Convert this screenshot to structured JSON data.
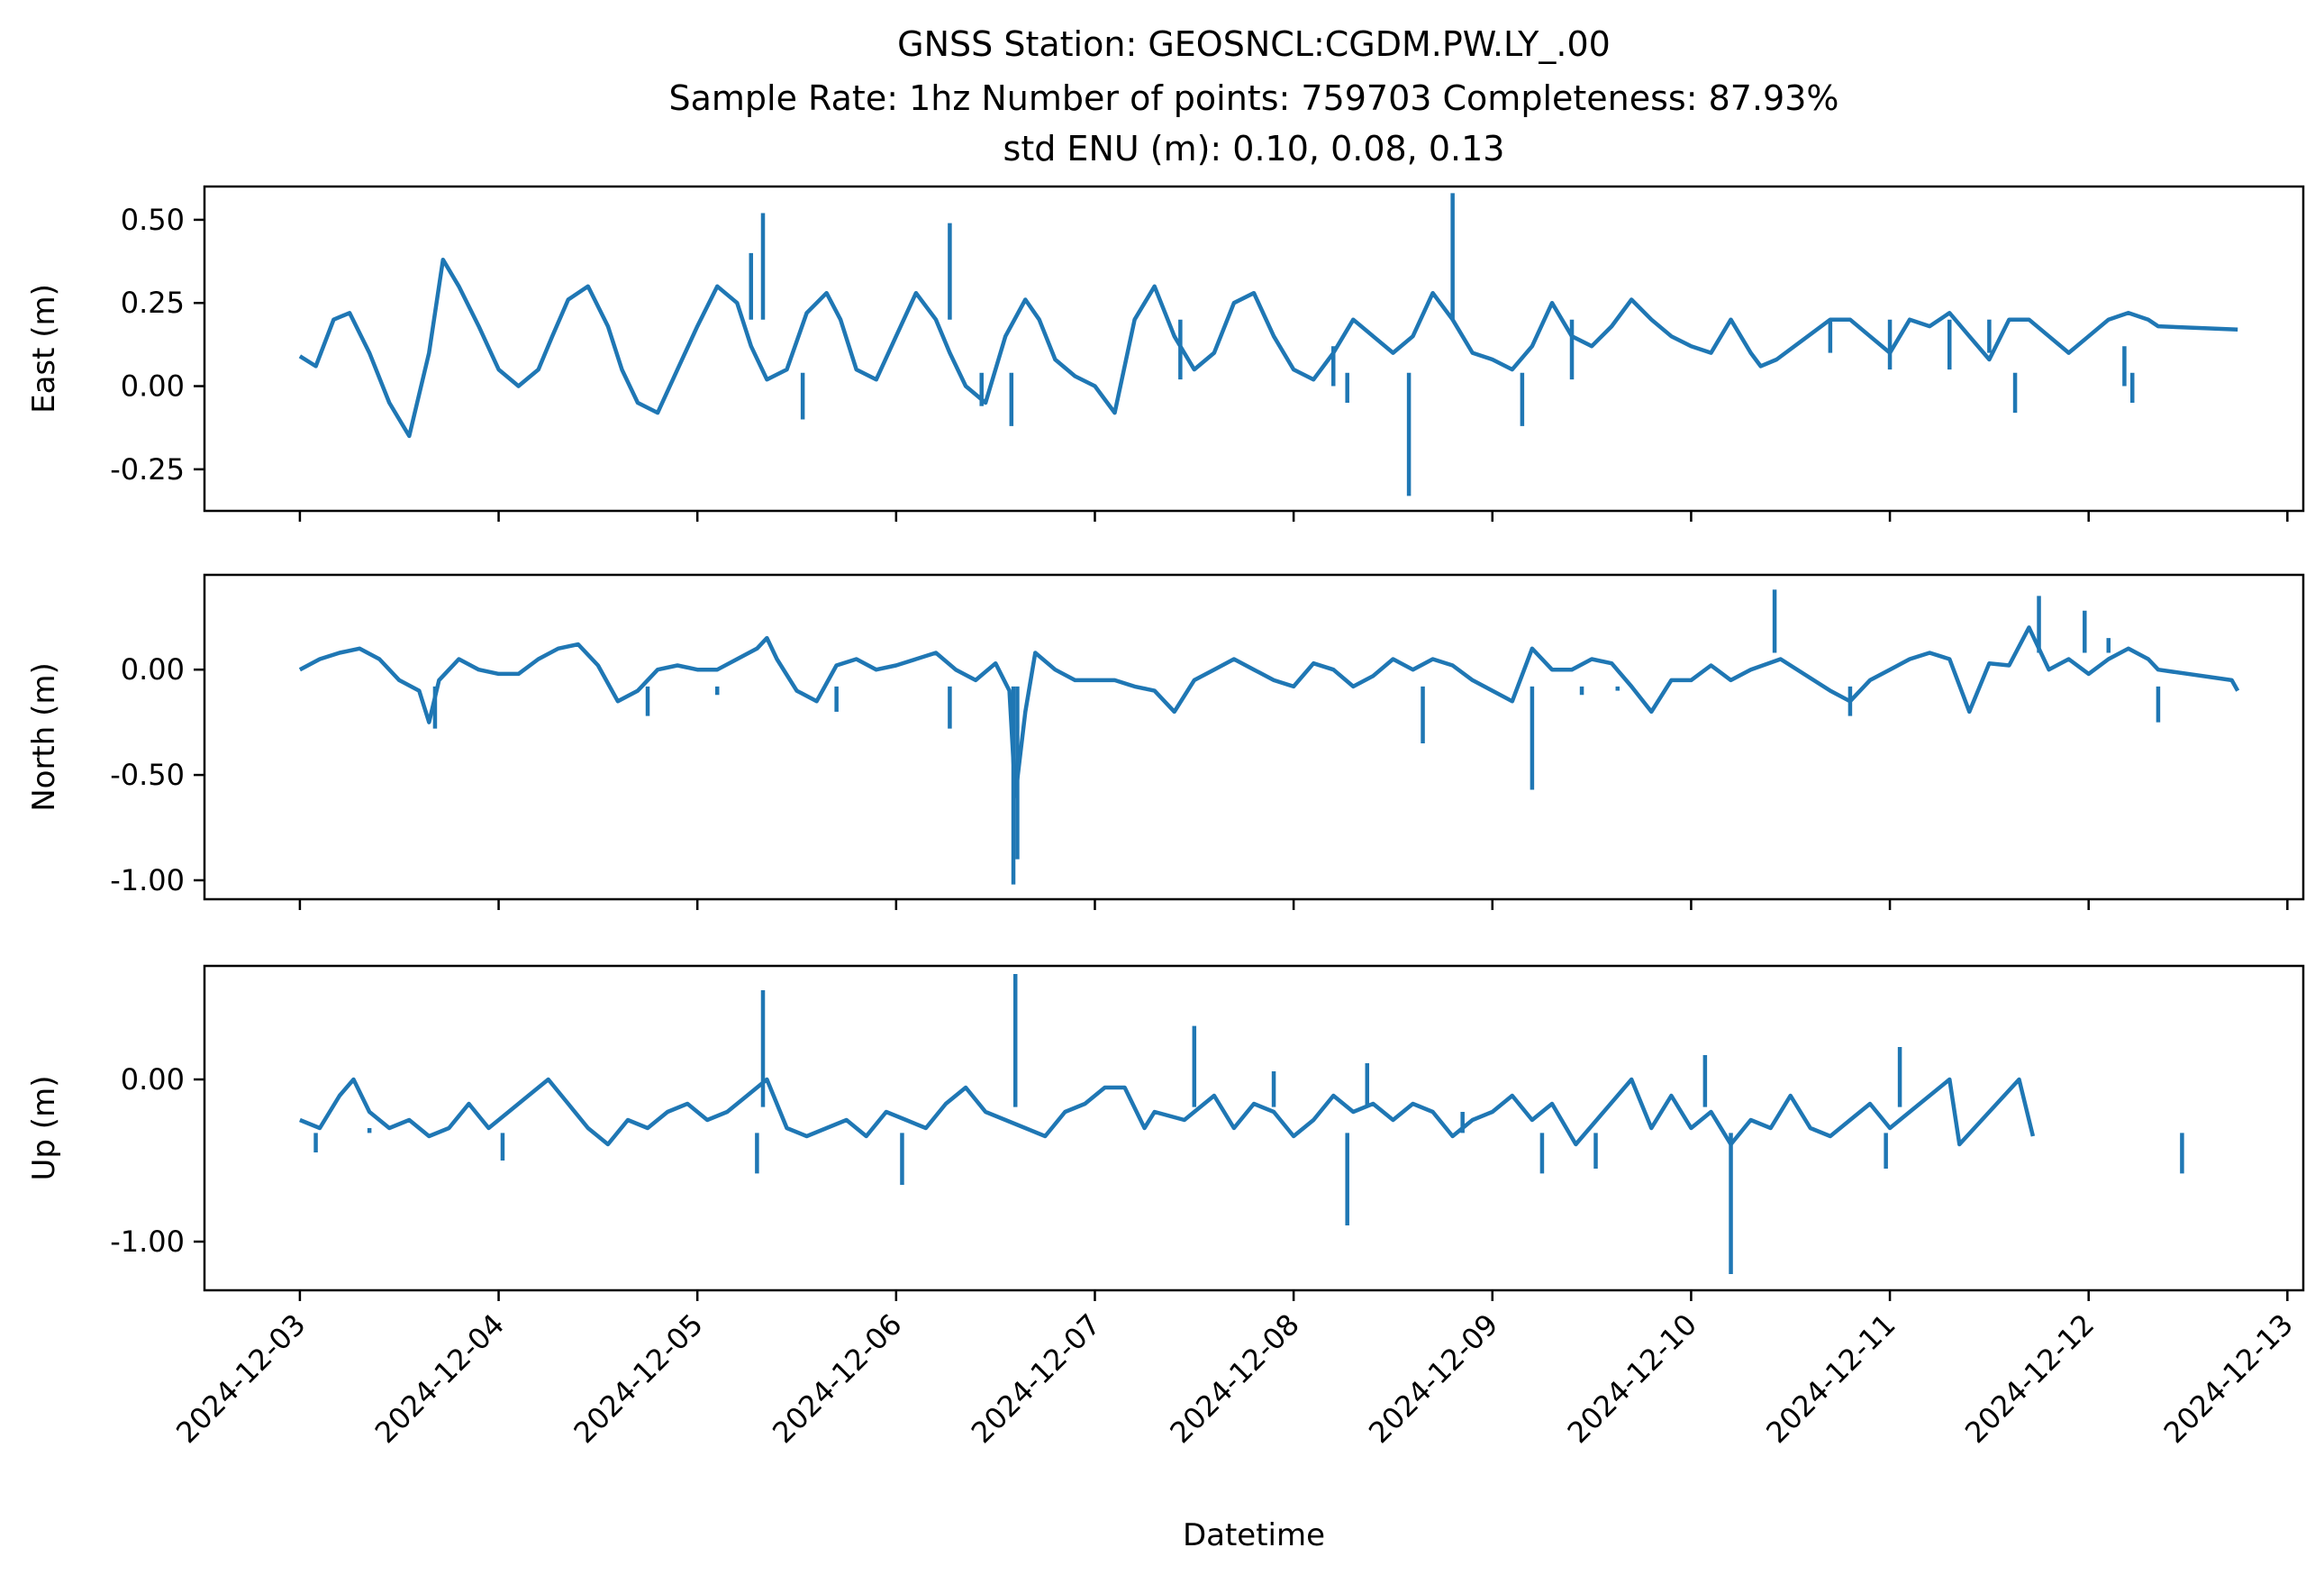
{
  "chart_data": {
    "type": "line",
    "title": {
      "line1": "GNSS Station: GEOSNCL:CGDM.PW.LY_.00",
      "line2": "Sample Rate: 1hz   Number of points: 759703    Completeness:  87.93%",
      "line3": "std ENU (m):  0.10, 0.08, 0.13"
    },
    "xlabel": "Datetime",
    "xlim": [
      -0.48,
      10.08
    ],
    "x_ticks": [
      0,
      1,
      2,
      3,
      4,
      5,
      6,
      7,
      8,
      9,
      10
    ],
    "x_tick_labels": [
      "2024-12-03",
      "2024-12-04",
      "2024-12-05",
      "2024-12-06",
      "2024-12-07",
      "2024-12-08",
      "2024-12-09",
      "2024-12-10",
      "2024-12-11",
      "2024-12-12",
      "2024-12-13"
    ],
    "x_units": "days since 2024-12-03",
    "line_color": "#1f77b4",
    "panels": [
      {
        "name": "east",
        "ylabel": "East (m)",
        "ylim": [
          -0.375,
          0.6
        ],
        "yticks": [
          -0.25,
          0.0,
          0.25,
          0.5
        ],
        "ytick_labels": [
          "-0.25",
          "0.00",
          "0.25",
          "0.50"
        ],
        "series": [
          {
            "name": "East",
            "x": [
              0,
              0.08,
              0.17,
              0.25,
              0.35,
              0.45,
              0.55,
              0.65,
              0.72,
              0.8,
              0.9,
              1.0,
              1.1,
              1.2,
              1.27,
              1.35,
              1.45,
              1.55,
              1.62,
              1.7,
              1.8,
              1.9,
              2.0,
              2.1,
              2.2,
              2.27,
              2.35,
              2.45,
              2.55,
              2.65,
              2.72,
              2.8,
              2.9,
              3.0,
              3.1,
              3.2,
              3.27,
              3.35,
              3.45,
              3.55,
              3.65,
              3.72,
              3.8,
              3.9,
              4.0,
              4.1,
              4.2,
              4.3,
              4.4,
              4.5,
              4.6,
              4.7,
              4.8,
              4.9,
              5.0,
              5.1,
              5.2,
              5.3,
              5.4,
              5.5,
              5.6,
              5.7,
              5.8,
              5.9,
              6.0,
              6.1,
              6.2,
              6.3,
              6.4,
              6.5,
              6.6,
              6.7,
              6.8,
              6.9,
              7.0,
              7.1,
              7.2,
              7.3,
              7.35,
              7.43,
              7.7,
              7.8,
              7.9,
              8.0,
              8.1,
              8.2,
              8.3,
              8.4,
              8.5,
              8.6,
              8.7,
              8.8,
              8.9,
              9.0,
              9.1,
              9.2,
              9.3,
              9.35,
              9.75
            ],
            "y": [
              0.09,
              0.06,
              0.2,
              0.22,
              0.1,
              -0.05,
              -0.15,
              0.1,
              0.38,
              0.3,
              0.18,
              0.05,
              0.0,
              0.05,
              0.15,
              0.26,
              0.3,
              0.18,
              0.05,
              -0.05,
              -0.08,
              0.05,
              0.18,
              0.3,
              0.25,
              0.12,
              0.02,
              0.05,
              0.22,
              0.28,
              0.2,
              0.05,
              0.02,
              0.15,
              0.28,
              0.2,
              0.1,
              0.0,
              -0.05,
              0.15,
              0.26,
              0.2,
              0.08,
              0.03,
              0.0,
              -0.08,
              0.2,
              0.3,
              0.15,
              0.05,
              0.1,
              0.25,
              0.28,
              0.15,
              0.05,
              0.02,
              0.1,
              0.2,
              0.15,
              0.1,
              0.15,
              0.28,
              0.2,
              0.1,
              0.08,
              0.05,
              0.12,
              0.25,
              0.15,
              0.12,
              0.18,
              0.26,
              0.2,
              0.15,
              0.12,
              0.1,
              0.2,
              0.1,
              0.06,
              0.08,
              0.2,
              0.2,
              0.15,
              0.1,
              0.2,
              0.18,
              0.22,
              0.15,
              0.08,
              0.2,
              0.2,
              0.15,
              0.1,
              0.15,
              0.2,
              0.22,
              0.2,
              0.18,
              0.17
            ]
          },
          {
            "name": "East spikes",
            "x": [
              2.33,
              3.27,
              5.58,
              6.15,
              2.27,
              2.53,
              3.43,
              3.58,
              4.43,
              5.27,
              5.8,
              5.2,
              6.4,
              7.7,
              8.0,
              8.3,
              8.5,
              8.63,
              9.18,
              9.22
            ],
            "y": [
              0.52,
              0.49,
              -0.33,
              -0.12,
              0.4,
              -0.1,
              -0.06,
              -0.12,
              0.02,
              -0.05,
              0.58,
              0.0,
              0.02,
              0.1,
              0.05,
              0.05,
              0.1,
              -0.08,
              0.0,
              -0.05
            ]
          }
        ]
      },
      {
        "name": "north",
        "ylabel": "North (m)",
        "ylim": [
          -1.09,
          0.45
        ],
        "yticks": [
          -1.0,
          -0.5,
          0.0
        ],
        "ytick_labels": [
          "-1.00",
          "-0.50",
          "0.00"
        ],
        "series": [
          {
            "name": "North",
            "x": [
              0,
              0.1,
              0.2,
              0.3,
              0.4,
              0.5,
              0.6,
              0.65,
              0.7,
              0.8,
              0.9,
              1.0,
              1.1,
              1.2,
              1.3,
              1.4,
              1.5,
              1.6,
              1.7,
              1.8,
              1.9,
              2.0,
              2.1,
              2.2,
              2.3,
              2.35,
              2.4,
              2.5,
              2.6,
              2.7,
              2.8,
              2.9,
              3.0,
              3.1,
              3.2,
              3.3,
              3.4,
              3.5,
              3.57,
              3.6,
              3.65,
              3.7,
              3.8,
              3.9,
              4.0,
              4.1,
              4.2,
              4.3,
              4.4,
              4.5,
              4.6,
              4.7,
              4.8,
              4.9,
              5.0,
              5.1,
              5.2,
              5.3,
              5.4,
              5.5,
              5.6,
              5.7,
              5.8,
              5.9,
              6.0,
              6.1,
              6.2,
              6.3,
              6.4,
              6.5,
              6.6,
              6.7,
              6.8,
              6.9,
              7.0,
              7.1,
              7.2,
              7.3,
              7.45,
              7.7,
              7.8,
              7.9,
              8.0,
              8.1,
              8.2,
              8.3,
              8.4,
              8.5,
              8.6,
              8.7,
              8.8,
              8.9,
              9.0,
              9.1,
              9.2,
              9.3,
              9.35,
              9.72,
              9.75
            ],
            "y": [
              0.0,
              0.05,
              0.08,
              0.1,
              0.05,
              -0.05,
              -0.1,
              -0.25,
              -0.05,
              0.05,
              0.0,
              -0.02,
              -0.02,
              0.05,
              0.1,
              0.12,
              0.02,
              -0.15,
              -0.1,
              0.0,
              0.02,
              0.0,
              0.0,
              0.05,
              0.1,
              0.15,
              0.05,
              -0.1,
              -0.15,
              0.02,
              0.05,
              0.0,
              0.02,
              0.05,
              0.08,
              0.0,
              -0.05,
              0.03,
              -0.1,
              -0.6,
              -0.2,
              0.08,
              0.0,
              -0.05,
              -0.05,
              -0.05,
              -0.08,
              -0.1,
              -0.2,
              -0.05,
              0.0,
              0.05,
              0.0,
              -0.05,
              -0.08,
              0.03,
              0.0,
              -0.08,
              -0.03,
              0.05,
              0.0,
              0.05,
              0.02,
              -0.05,
              -0.1,
              -0.15,
              0.1,
              0.0,
              0.0,
              0.05,
              0.03,
              -0.08,
              -0.2,
              -0.05,
              -0.05,
              0.02,
              -0.05,
              0.0,
              0.05,
              -0.1,
              -0.15,
              -0.05,
              0.0,
              0.05,
              0.08,
              0.05,
              -0.2,
              0.03,
              0.02,
              0.2,
              0.0,
              0.05,
              -0.02,
              0.05,
              0.1,
              0.05,
              0.0,
              -0.05,
              -0.1
            ]
          },
          {
            "name": "North spikes",
            "x": [
              3.59,
              3.61,
              6.2,
              7.42,
              7.8,
              8.75,
              8.98,
              9.1,
              9.35,
              0.68,
              1.75,
              2.1,
              2.7,
              3.27,
              5.65,
              6.45,
              6.63
            ],
            "y": [
              -1.02,
              -0.9,
              -0.57,
              0.38,
              -0.22,
              0.35,
              0.28,
              0.15,
              -0.25,
              -0.28,
              -0.22,
              -0.12,
              -0.2,
              -0.28,
              -0.35,
              -0.12,
              -0.1
            ]
          }
        ]
      },
      {
        "name": "up",
        "ylabel": "Up (m)",
        "ylim": [
          -1.3,
          0.7
        ],
        "yticks": [
          -1.0,
          0.0
        ],
        "ytick_labels": [
          "-1.00",
          "0.00"
        ],
        "series": [
          {
            "name": "Up",
            "x": [
              0,
              0.1,
              0.2,
              0.27,
              0.35,
              0.45,
              0.55,
              0.65,
              0.75,
              0.85,
              0.95,
              1.05,
              1.15,
              1.25,
              1.35,
              1.45,
              1.55,
              1.65,
              1.75,
              1.85,
              1.95,
              2.05,
              2.15,
              2.25,
              2.35,
              2.45,
              2.55,
              2.65,
              2.75,
              2.85,
              2.95,
              3.05,
              3.15,
              3.25,
              3.35,
              3.45,
              3.55,
              3.65,
              3.75,
              3.85,
              3.95,
              4.05,
              4.15,
              4.25,
              4.3,
              4.45,
              4.6,
              4.7,
              4.8,
              4.9,
              5.0,
              5.1,
              5.2,
              5.3,
              5.4,
              5.5,
              5.6,
              5.7,
              5.8,
              5.9,
              6.0,
              6.1,
              6.2,
              6.3,
              6.42,
              6.7,
              6.8,
              6.9,
              7.0,
              7.1,
              7.2,
              7.3,
              7.4,
              7.5,
              7.6,
              7.7,
              7.8,
              7.9,
              8.0,
              8.1,
              8.2,
              8.3,
              8.35,
              8.65,
              8.72
            ],
            "y": [
              -0.25,
              -0.3,
              -0.1,
              0.0,
              -0.2,
              -0.3,
              -0.25,
              -0.35,
              -0.3,
              -0.15,
              -0.3,
              -0.2,
              -0.1,
              0.0,
              -0.15,
              -0.3,
              -0.4,
              -0.25,
              -0.3,
              -0.2,
              -0.15,
              -0.25,
              -0.2,
              -0.1,
              0.0,
              -0.3,
              -0.35,
              -0.3,
              -0.25,
              -0.35,
              -0.2,
              -0.25,
              -0.3,
              -0.15,
              -0.05,
              -0.2,
              -0.25,
              -0.3,
              -0.35,
              -0.2,
              -0.15,
              -0.05,
              -0.05,
              -0.3,
              -0.2,
              -0.25,
              -0.1,
              -0.3,
              -0.15,
              -0.2,
              -0.35,
              -0.25,
              -0.1,
              -0.2,
              -0.15,
              -0.25,
              -0.15,
              -0.2,
              -0.35,
              -0.25,
              -0.2,
              -0.1,
              -0.25,
              -0.15,
              -0.4,
              0.0,
              -0.3,
              -0.1,
              -0.3,
              -0.2,
              -0.4,
              -0.25,
              -0.3,
              -0.1,
              -0.3,
              -0.35,
              -0.25,
              -0.15,
              -0.3,
              -0.2,
              -0.1,
              0.0,
              -0.4,
              0.0,
              -0.35
            ]
          },
          {
            "name": "Up spikes",
            "x": [
              2.33,
              3.6,
              7.2,
              4.5,
              5.27,
              5.37,
              4.9,
              6.52,
              7.07,
              8.05,
              7.98,
              5.85,
              2.3,
              0.35,
              0.08,
              1.02,
              3.03,
              6.25,
              9.47
            ],
            "y": [
              0.55,
              0.65,
              -1.2,
              0.33,
              -0.9,
              0.1,
              0.05,
              -0.55,
              0.15,
              0.2,
              -0.55,
              -0.2,
              -0.58,
              -0.3,
              -0.45,
              -0.5,
              -0.65,
              -0.58,
              -0.58
            ]
          }
        ]
      }
    ]
  }
}
